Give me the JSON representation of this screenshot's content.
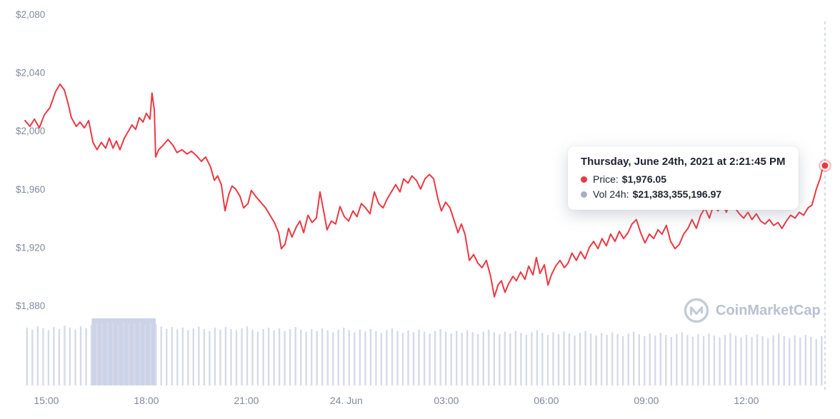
{
  "chart_data": {
    "type": "line",
    "title": "",
    "xlabel": "",
    "ylabel": "",
    "legend": "none",
    "grid": false,
    "x_unit": "hours since start (start = June 23 2021 ~14:20, end = June 24 2021 ~14:21)",
    "x_range_hours": [
      0,
      24
    ],
    "y_range": [
      1880,
      2080
    ],
    "y_ticks": [
      {
        "value": 2080,
        "label": "$2,080"
      },
      {
        "value": 2040,
        "label": "$2,040"
      },
      {
        "value": 2000,
        "label": "$2,000"
      },
      {
        "value": 1960,
        "label": "$1,960"
      },
      {
        "value": 1920,
        "label": "$1,920"
      },
      {
        "value": 1880,
        "label": "$1,880"
      }
    ],
    "x_ticks": [
      {
        "t": 0.64,
        "label": "15:00"
      },
      {
        "t": 3.64,
        "label": "18:00"
      },
      {
        "t": 6.64,
        "label": "21:00"
      },
      {
        "t": 9.64,
        "label": "24. Jun"
      },
      {
        "t": 12.64,
        "label": "03:00"
      },
      {
        "t": 15.64,
        "label": "06:00"
      },
      {
        "t": 18.64,
        "label": "09:00"
      },
      {
        "t": 21.64,
        "label": "12:00"
      }
    ],
    "series": [
      {
        "name": "Price (USD)",
        "color": "#ea3943",
        "points": [
          [
            0,
            2007
          ],
          [
            0.15,
            2003
          ],
          [
            0.28,
            2008
          ],
          [
            0.43,
            2002
          ],
          [
            0.58,
            2011
          ],
          [
            0.75,
            2016
          ],
          [
            0.92,
            2027
          ],
          [
            1.05,
            2032
          ],
          [
            1.18,
            2028
          ],
          [
            1.29,
            2019
          ],
          [
            1.39,
            2009
          ],
          [
            1.54,
            2003
          ],
          [
            1.65,
            2006
          ],
          [
            1.78,
            2002
          ],
          [
            1.91,
            2007
          ],
          [
            2.04,
            1992
          ],
          [
            2.16,
            1987
          ],
          [
            2.29,
            1992
          ],
          [
            2.42,
            1988
          ],
          [
            2.53,
            1995
          ],
          [
            2.64,
            1988
          ],
          [
            2.74,
            1993
          ],
          [
            2.85,
            1987
          ],
          [
            2.98,
            1995
          ],
          [
            3.11,
            2000
          ],
          [
            3.21,
            2004
          ],
          [
            3.32,
            2001
          ],
          [
            3.43,
            2009
          ],
          [
            3.54,
            2006
          ],
          [
            3.64,
            2012
          ],
          [
            3.75,
            2008
          ],
          [
            3.81,
            2026
          ],
          [
            3.88,
            2014
          ],
          [
            3.92,
            1982
          ],
          [
            4.01,
            1987
          ],
          [
            4.14,
            1990
          ],
          [
            4.29,
            1994
          ],
          [
            4.44,
            1990
          ],
          [
            4.56,
            1985
          ],
          [
            4.71,
            1987
          ],
          [
            4.86,
            1984
          ],
          [
            4.99,
            1986
          ],
          [
            5.14,
            1983
          ],
          [
            5.29,
            1979
          ],
          [
            5.42,
            1982
          ],
          [
            5.57,
            1975
          ],
          [
            5.68,
            1966
          ],
          [
            5.78,
            1969
          ],
          [
            5.89,
            1963
          ],
          [
            6.0,
            1945
          ],
          [
            6.11,
            1956
          ],
          [
            6.21,
            1962
          ],
          [
            6.32,
            1960
          ],
          [
            6.45,
            1955
          ],
          [
            6.56,
            1947
          ],
          [
            6.69,
            1950
          ],
          [
            6.79,
            1959
          ],
          [
            6.92,
            1955
          ],
          [
            7.07,
            1951
          ],
          [
            7.22,
            1947
          ],
          [
            7.35,
            1942
          ],
          [
            7.48,
            1937
          ],
          [
            7.61,
            1930
          ],
          [
            7.69,
            1919
          ],
          [
            7.8,
            1922
          ],
          [
            7.91,
            1933
          ],
          [
            8.01,
            1927
          ],
          [
            8.14,
            1934
          ],
          [
            8.25,
            1938
          ],
          [
            8.36,
            1930
          ],
          [
            8.49,
            1942
          ],
          [
            8.61,
            1937
          ],
          [
            8.74,
            1940
          ],
          [
            8.85,
            1958
          ],
          [
            8.96,
            1945
          ],
          [
            9.06,
            1932
          ],
          [
            9.19,
            1938
          ],
          [
            9.32,
            1936
          ],
          [
            9.45,
            1948
          ],
          [
            9.58,
            1941
          ],
          [
            9.71,
            1938
          ],
          [
            9.84,
            1945
          ],
          [
            9.96,
            1941
          ],
          [
            10.09,
            1950
          ],
          [
            10.22,
            1947
          ],
          [
            10.35,
            1943
          ],
          [
            10.48,
            1958
          ],
          [
            10.61,
            1950
          ],
          [
            10.74,
            1947
          ],
          [
            10.86,
            1953
          ],
          [
            10.99,
            1958
          ],
          [
            11.12,
            1963
          ],
          [
            11.25,
            1958
          ],
          [
            11.36,
            1967
          ],
          [
            11.49,
            1964
          ],
          [
            11.61,
            1969
          ],
          [
            11.74,
            1966
          ],
          [
            11.87,
            1960
          ],
          [
            12.0,
            1967
          ],
          [
            12.13,
            1970
          ],
          [
            12.26,
            1967
          ],
          [
            12.39,
            1953
          ],
          [
            12.49,
            1945
          ],
          [
            12.62,
            1951
          ],
          [
            12.75,
            1947
          ],
          [
            12.88,
            1938
          ],
          [
            12.99,
            1930
          ],
          [
            13.09,
            1936
          ],
          [
            13.2,
            1929
          ],
          [
            13.33,
            1911
          ],
          [
            13.46,
            1915
          ],
          [
            13.59,
            1909
          ],
          [
            13.71,
            1906
          ],
          [
            13.84,
            1911
          ],
          [
            13.97,
            1900
          ],
          [
            14.08,
            1886
          ],
          [
            14.19,
            1894
          ],
          [
            14.29,
            1897
          ],
          [
            14.4,
            1889
          ],
          [
            14.51,
            1895
          ],
          [
            14.64,
            1900
          ],
          [
            14.74,
            1897
          ],
          [
            14.87,
            1903
          ],
          [
            15.0,
            1898
          ],
          [
            15.11,
            1907
          ],
          [
            15.24,
            1901
          ],
          [
            15.34,
            1913
          ],
          [
            15.45,
            1902
          ],
          [
            15.58,
            1908
          ],
          [
            15.69,
            1894
          ],
          [
            15.79,
            1901
          ],
          [
            15.92,
            1907
          ],
          [
            16.05,
            1911
          ],
          [
            16.18,
            1906
          ],
          [
            16.29,
            1909
          ],
          [
            16.41,
            1916
          ],
          [
            16.54,
            1911
          ],
          [
            16.67,
            1917
          ],
          [
            16.8,
            1912
          ],
          [
            16.93,
            1920
          ],
          [
            17.06,
            1924
          ],
          [
            17.19,
            1919
          ],
          [
            17.31,
            1926
          ],
          [
            17.44,
            1921
          ],
          [
            17.57,
            1929
          ],
          [
            17.7,
            1924
          ],
          [
            17.83,
            1931
          ],
          [
            17.96,
            1926
          ],
          [
            18.09,
            1930
          ],
          [
            18.21,
            1936
          ],
          [
            18.34,
            1939
          ],
          [
            18.47,
            1930
          ],
          [
            18.6,
            1923
          ],
          [
            18.73,
            1929
          ],
          [
            18.86,
            1926
          ],
          [
            18.99,
            1932
          ],
          [
            19.11,
            1929
          ],
          [
            19.24,
            1935
          ],
          [
            19.37,
            1924
          ],
          [
            19.5,
            1919
          ],
          [
            19.63,
            1922
          ],
          [
            19.76,
            1929
          ],
          [
            19.89,
            1933
          ],
          [
            20.01,
            1939
          ],
          [
            20.14,
            1933
          ],
          [
            20.27,
            1942
          ],
          [
            20.4,
            1947
          ],
          [
            20.53,
            1940
          ],
          [
            20.66,
            1949
          ],
          [
            20.79,
            1945
          ],
          [
            20.91,
            1950
          ],
          [
            21.04,
            1944
          ],
          [
            21.17,
            1952
          ],
          [
            21.3,
            1947
          ],
          [
            21.43,
            1943
          ],
          [
            21.56,
            1940
          ],
          [
            21.69,
            1944
          ],
          [
            21.81,
            1939
          ],
          [
            21.94,
            1943
          ],
          [
            22.07,
            1938
          ],
          [
            22.2,
            1936
          ],
          [
            22.33,
            1939
          ],
          [
            22.46,
            1935
          ],
          [
            22.59,
            1937
          ],
          [
            22.71,
            1933
          ],
          [
            22.84,
            1938
          ],
          [
            22.97,
            1942
          ],
          [
            23.1,
            1940
          ],
          [
            23.23,
            1944
          ],
          [
            23.36,
            1942
          ],
          [
            23.49,
            1947
          ],
          [
            23.61,
            1949
          ],
          [
            23.74,
            1960
          ],
          [
            23.85,
            1967
          ],
          [
            23.94,
            1975
          ],
          [
            24.0,
            1976.05
          ]
        ]
      }
    ],
    "volume": {
      "color": "#d5dae9",
      "bar_heights": [
        88,
        85,
        90,
        87,
        84,
        89,
        86,
        91,
        88,
        85,
        90,
        87,
        92,
        95,
        94,
        96,
        95,
        93,
        96,
        94,
        95,
        96,
        93,
        95,
        94,
        90,
        86,
        89,
        85,
        88,
        84,
        87,
        90,
        86,
        83,
        88,
        85,
        89,
        86,
        84,
        87,
        90,
        85,
        82,
        86,
        88,
        84,
        87,
        83,
        86,
        89,
        85,
        82,
        86,
        83,
        87,
        84,
        81,
        85,
        88,
        84,
        81,
        85,
        82,
        86,
        83,
        80,
        84,
        87,
        83,
        80,
        84,
        81,
        85,
        82,
        79,
        83,
        86,
        82,
        79,
        83,
        80,
        84,
        81,
        78,
        82,
        85,
        81,
        78,
        82,
        79,
        83,
        80,
        77,
        81,
        84,
        80,
        77,
        81,
        78,
        82,
        79,
        76,
        80,
        83,
        79,
        76,
        80,
        77,
        81,
        78,
        75,
        79,
        82,
        78,
        75,
        79,
        76,
        80,
        77,
        74,
        78,
        81,
        77,
        74,
        78,
        75,
        79,
        76,
        73,
        77,
        80,
        76,
        73,
        77,
        74,
        78,
        75,
        72,
        76,
        79,
        75,
        72,
        76,
        73,
        77,
        74,
        71,
        75
      ],
      "selection": {
        "t_start": 2.0,
        "t_end": 3.92,
        "color": "#ccd3e8"
      }
    },
    "cursor": {
      "t": 24.0,
      "price": 1976.05
    }
  },
  "tooltip": {
    "title": "Thursday, June 24th, 2021 at 2:21:45 PM",
    "price_label": "Price:",
    "price_value": "$1,976.05",
    "vol_label": "Vol 24h:",
    "vol_value": "$21,383,355,196.97",
    "price_dot_color": "#ea3943",
    "vol_dot_color": "#a6b0c3"
  },
  "watermark": {
    "text": "CoinMarketCap"
  },
  "colors": {
    "background": "#ffffff",
    "axis_label": "#808a9d",
    "cursor_line": "#bcc3d1"
  }
}
